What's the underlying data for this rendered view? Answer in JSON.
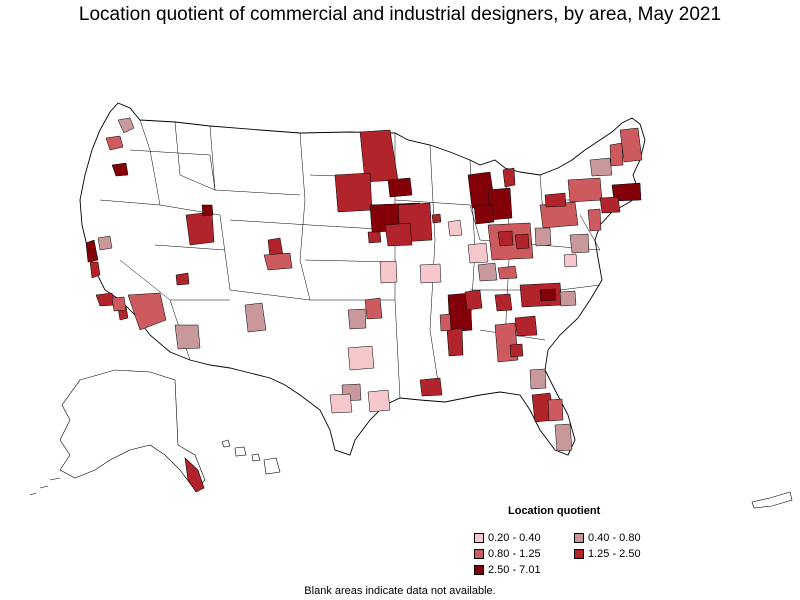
{
  "title": "Location quotient of commercial and industrial designers, by area, May 2021",
  "legend": {
    "title": "Location quotient",
    "items": [
      {
        "label": "0.20 - 0.40",
        "color": "#f6c7cb"
      },
      {
        "label": "0.40 - 0.80",
        "color": "#c9989b"
      },
      {
        "label": "0.80 - 1.25",
        "color": "#cc5a5f"
      },
      {
        "label": "1.25 - 2.50",
        "color": "#b2242b"
      },
      {
        "label": "2.50 - 7.01",
        "color": "#830009"
      }
    ]
  },
  "note": "Blank areas indicate data not available.",
  "colors": {
    "outline": "#000000",
    "blank": "#ffffff"
  }
}
